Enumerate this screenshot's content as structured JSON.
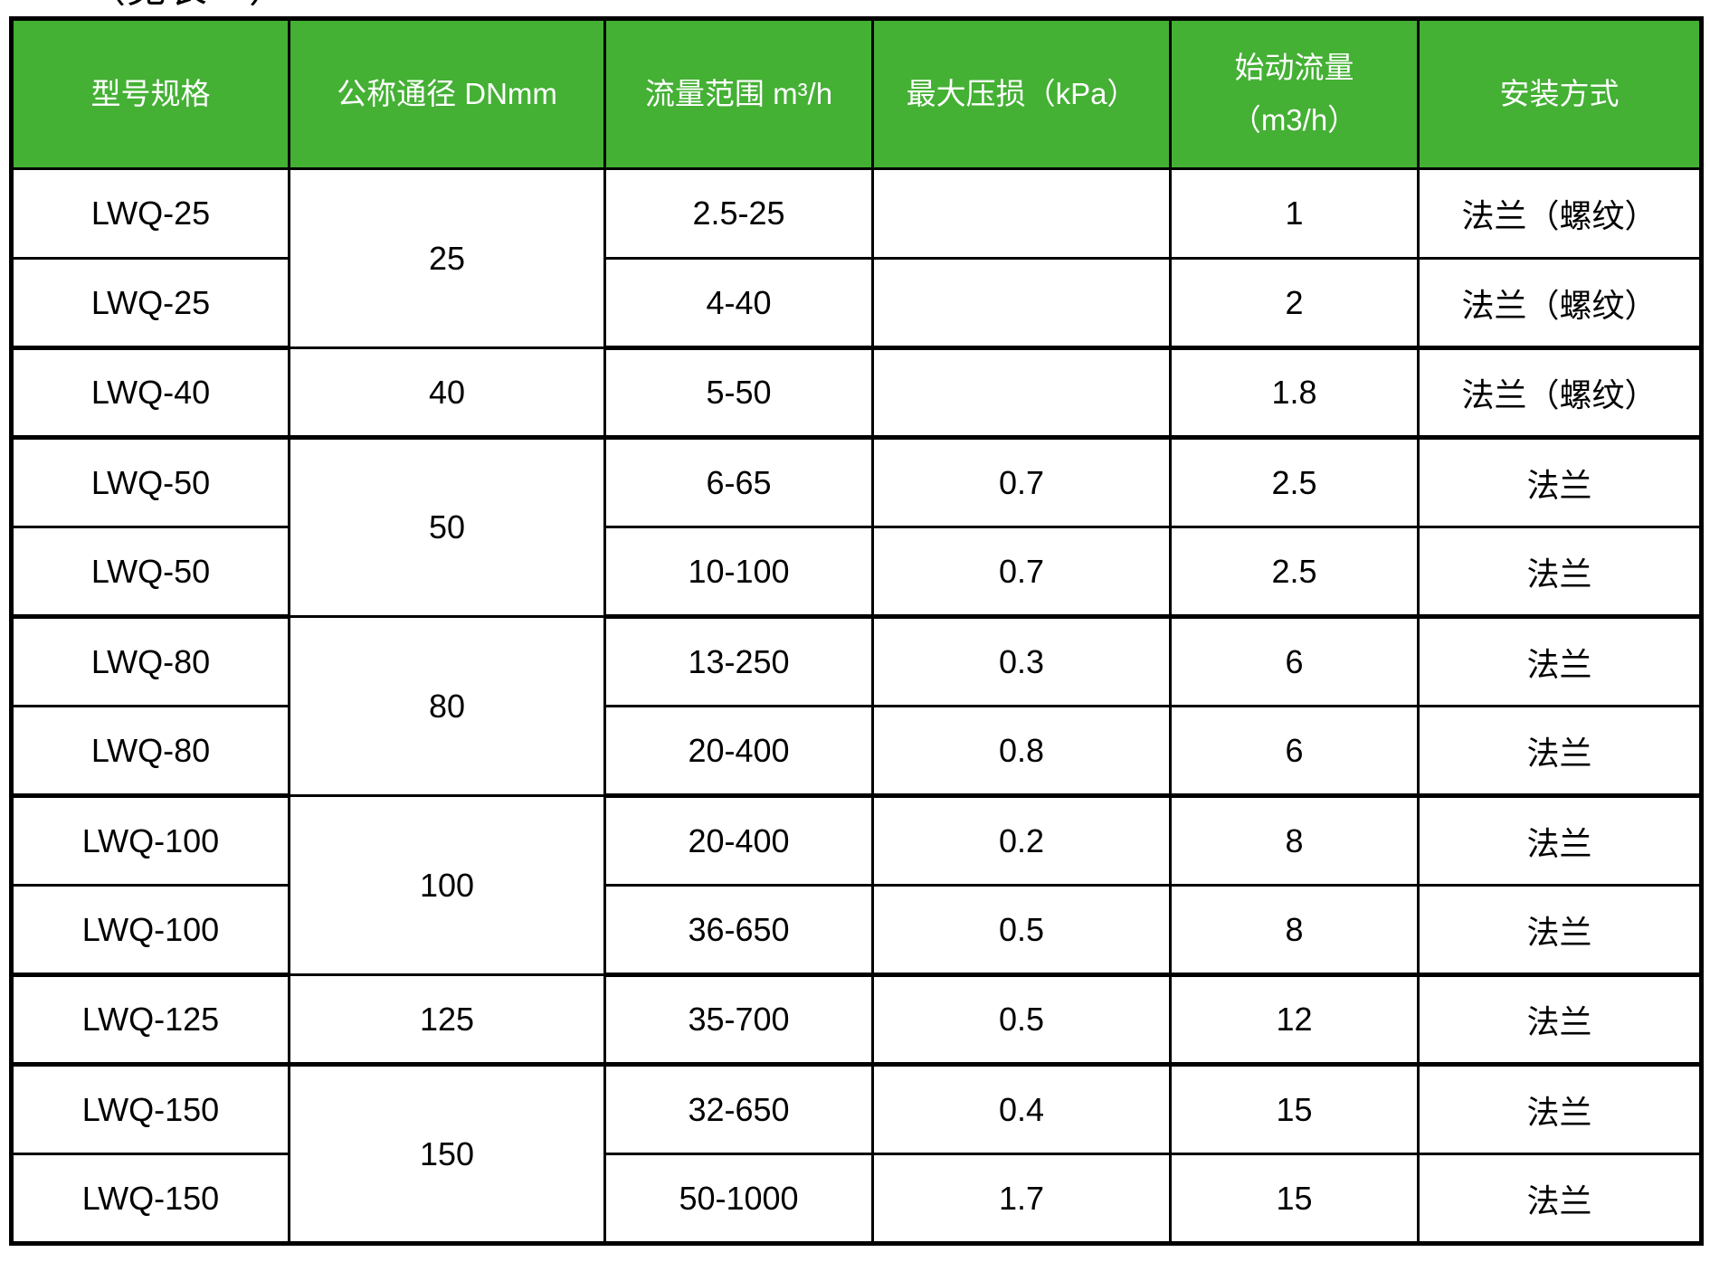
{
  "caption": "（见表一）",
  "colors": {
    "header_bg": "#44b034",
    "header_text": "#ffffff",
    "border": "#000000",
    "body_text": "#000000",
    "page_bg": "#ffffff"
  },
  "table": {
    "headers": [
      {
        "label": "型号规格"
      },
      {
        "label": "公称通径 DNmm"
      },
      {
        "label": "流量范围 m³/h"
      },
      {
        "label": "最大压损（kPa）"
      },
      {
        "label": "始动流量",
        "label_line2": "（m3/h）"
      },
      {
        "label": "安装方式"
      }
    ],
    "rows": [
      {
        "model": "LWQ-25",
        "dn": "25",
        "dn_rowspan": 2,
        "flow": "2.5-25",
        "loss": "",
        "start": "1",
        "install": "法兰（螺纹）",
        "group_end": false
      },
      {
        "model": "LWQ-25",
        "dn": null,
        "dn_rowspan": 0,
        "flow": "4-40",
        "loss": "",
        "start": "2",
        "install": "法兰（螺纹）",
        "group_end": true
      },
      {
        "model": "LWQ-40",
        "dn": "40",
        "dn_rowspan": 1,
        "flow": "5-50",
        "loss": "",
        "start": "1.8",
        "install": "法兰（螺纹）",
        "group_end": true
      },
      {
        "model": "LWQ-50",
        "dn": "50",
        "dn_rowspan": 2,
        "flow": "6-65",
        "loss": "0.7",
        "start": "2.5",
        "install": "法兰",
        "group_end": false
      },
      {
        "model": "LWQ-50",
        "dn": null,
        "dn_rowspan": 0,
        "flow": "10-100",
        "loss": "0.7",
        "start": "2.5",
        "install": "法兰",
        "group_end": true
      },
      {
        "model": "LWQ-80",
        "dn": "80",
        "dn_rowspan": 2,
        "flow": "13-250",
        "loss": "0.3",
        "start": "6",
        "install": "法兰",
        "group_end": false
      },
      {
        "model": "LWQ-80",
        "dn": null,
        "dn_rowspan": 0,
        "flow": "20-400",
        "loss": "0.8",
        "start": "6",
        "install": "法兰",
        "group_end": true
      },
      {
        "model": "LWQ-100",
        "dn": "100",
        "dn_rowspan": 2,
        "flow": "20-400",
        "loss": "0.2",
        "start": "8",
        "install": "法兰",
        "group_end": false
      },
      {
        "model": "LWQ-100",
        "dn": null,
        "dn_rowspan": 0,
        "flow": "36-650",
        "loss": "0.5",
        "start": "8",
        "install": "法兰",
        "group_end": true
      },
      {
        "model": "LWQ-125",
        "dn": "125",
        "dn_rowspan": 1,
        "flow": "35-700",
        "loss": "0.5",
        "start": "12",
        "install": "法兰",
        "group_end": true
      },
      {
        "model": "LWQ-150",
        "dn": "150",
        "dn_rowspan": 2,
        "flow": "32-650",
        "loss": "0.4",
        "start": "15",
        "install": "法兰",
        "group_end": false
      },
      {
        "model": "LWQ-150",
        "dn": null,
        "dn_rowspan": 0,
        "flow": "50-1000",
        "loss": "1.7",
        "start": "15",
        "install": "法兰",
        "group_end": true
      }
    ]
  }
}
